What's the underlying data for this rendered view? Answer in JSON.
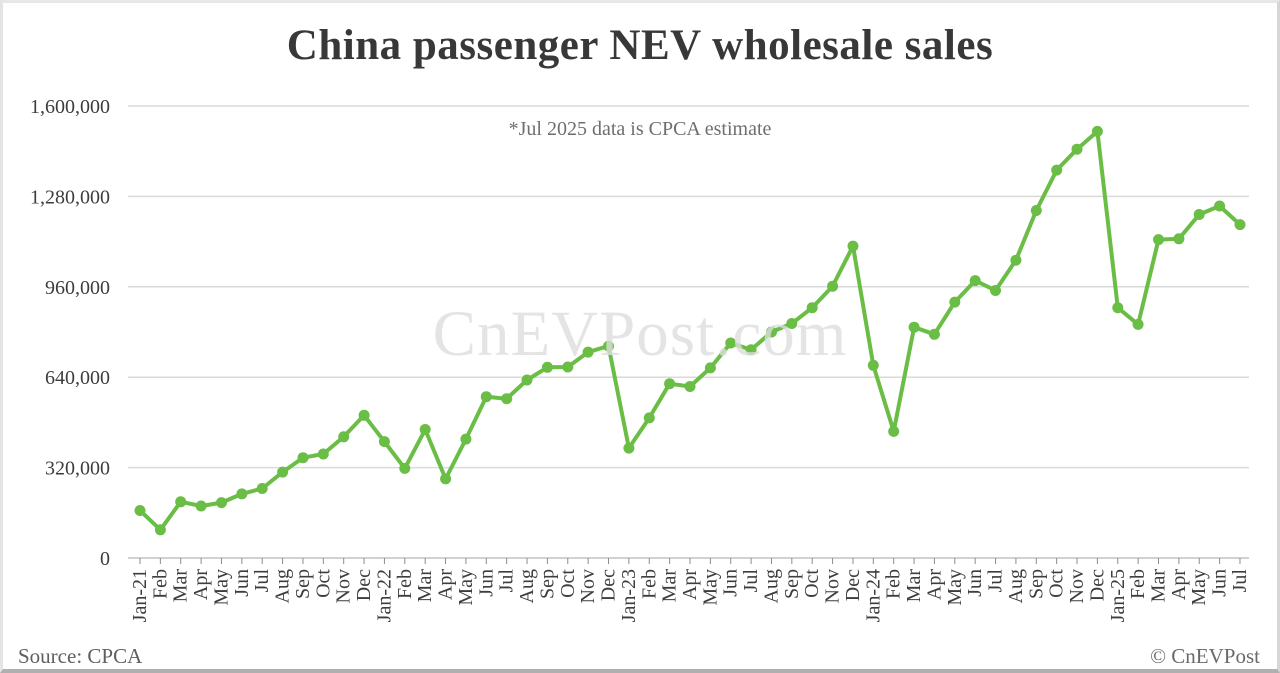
{
  "header": {
    "title": "China passenger NEV wholesale sales"
  },
  "watermark": {
    "text": "CnEVPost.com"
  },
  "footer": {
    "source": "Source: CPCA",
    "copyright": "© CnEVPost"
  },
  "colors": {
    "line": "#6abd45",
    "marker": "#6abd45",
    "grid": "#dadada",
    "axis": "#c2c2c2",
    "tick": "#8c8c8c",
    "tick_label": "#3d3d3d",
    "title_text": "#383838",
    "annotation_text": "#6e6e6e",
    "watermark_text": "#dddddd"
  },
  "chart_data": {
    "type": "line",
    "title": "China passenger NEV wholesale sales",
    "annotation": "*Jul 2025 data is CPCA estimate",
    "xlabel": "",
    "ylabel": "",
    "ylim": [
      0,
      1600000
    ],
    "y_ticks": [
      0,
      320000,
      640000,
      960000,
      1280000,
      1600000
    ],
    "y_tick_labels": [
      "0",
      "320,000",
      "640,000",
      "960,000",
      "1,280,000",
      "1,600,000"
    ],
    "grid": "horizontal",
    "legend": "none",
    "x": [
      "Jan-21",
      "Feb",
      "Mar",
      "Apr",
      "May",
      "Jun",
      "Jul",
      "Aug",
      "Sep",
      "Oct",
      "Nov",
      "Dec",
      "Jan-22",
      "Feb",
      "Mar",
      "Apr",
      "May",
      "Jun",
      "Jul",
      "Aug",
      "Sep",
      "Oct",
      "Nov",
      "Dec",
      "Jan-23",
      "Feb",
      "Mar",
      "Apr",
      "May",
      "Jun",
      "Jul",
      "Aug",
      "Sep",
      "Oct",
      "Nov",
      "Dec",
      "Jan-24",
      "Feb",
      "Mar",
      "Apr",
      "May",
      "Jun",
      "Jul",
      "Aug",
      "Sep",
      "Oct",
      "Nov",
      "Dec",
      "Jan-25",
      "Feb",
      "Mar",
      "Apr",
      "May",
      "Jun",
      "Jul"
    ],
    "series": [
      {
        "name": "China passenger NEV wholesale sales (units)",
        "values": [
          168000,
          100000,
          199000,
          184000,
          196000,
          227000,
          246000,
          304000,
          355000,
          368000,
          429000,
          505000,
          412000,
          317000,
          455000,
          280000,
          421000,
          571000,
          564000,
          630000,
          675000,
          676000,
          729000,
          750000,
          389000,
          496000,
          617000,
          607000,
          673000,
          761000,
          737000,
          800000,
          830000,
          886000,
          962000,
          1104000,
          682000,
          448000,
          817000,
          792000,
          906000,
          982000,
          947000,
          1054000,
          1230000,
          1373000,
          1447000,
          1510000,
          886000,
          827000,
          1127000,
          1130000,
          1216000,
          1246000,
          1180000
        ]
      }
    ]
  }
}
